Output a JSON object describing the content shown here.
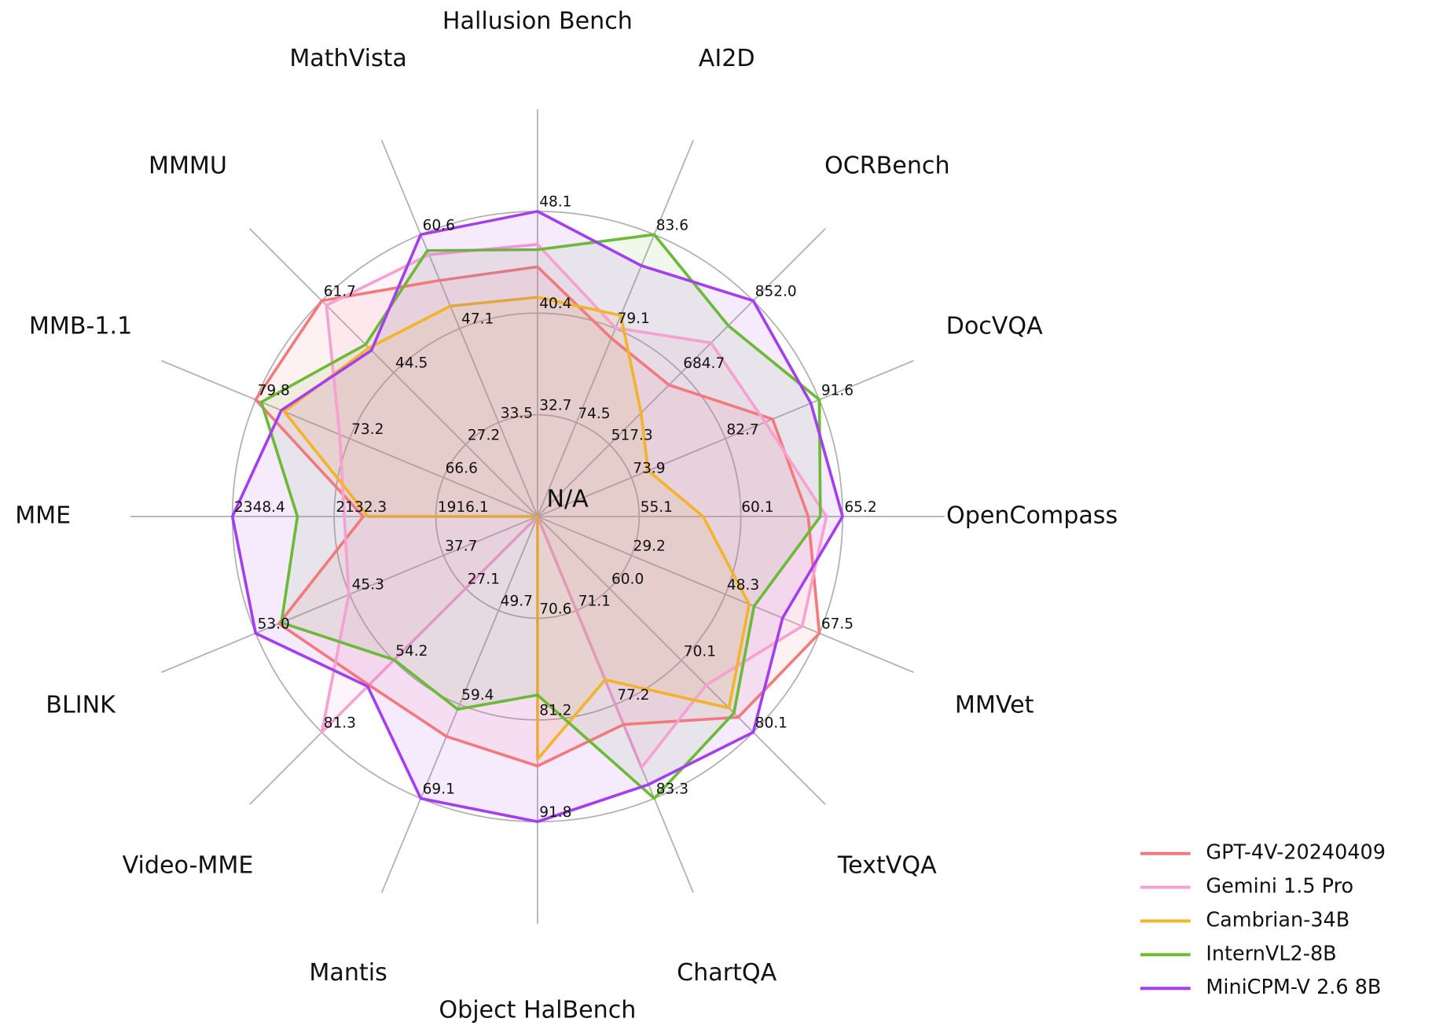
{
  "chart_data": {
    "type": "radar",
    "center_label": "N/A",
    "grid": true,
    "legend": "lower right",
    "axes": [
      {
        "name": "Hallusion Bench",
        "lim": [
          25.0,
          48.1
        ],
        "ticks": [
          32.7,
          40.4,
          48.1
        ]
      },
      {
        "name": "AI2D",
        "lim": [
          70.0,
          83.6
        ],
        "ticks": [
          74.5,
          79.1,
          83.6
        ]
      },
      {
        "name": "OCRBench",
        "lim": [
          350,
          852
        ],
        "ticks": [
          517.3,
          684.7,
          {
            "value": 852,
            "label": "852.0"
          }
        ]
      },
      {
        "name": "DocVQA",
        "lim": [
          65.1,
          91.6
        ],
        "ticks": [
          73.9,
          82.7,
          91.6
        ]
      },
      {
        "name": "OpenCompass",
        "lim": [
          50.1,
          65.2
        ],
        "ticks": [
          55.1,
          60.1,
          65.2
        ]
      },
      {
        "name": "MMVet",
        "lim": [
          10.1,
          67.5
        ],
        "ticks": [
          29.2,
          48.3,
          67.5
        ]
      },
      {
        "name": "TextVQA",
        "lim": [
          49.9,
          80.1
        ],
        "ticks": [
          {
            "value": 60,
            "label": "60.0"
          },
          70.1,
          80.1
        ]
      },
      {
        "name": "ChartQA",
        "lim": [
          65.0,
          83.3
        ],
        "ticks": [
          71.1,
          77.2,
          83.3
        ]
      },
      {
        "name": "Object HalBench",
        "lim": [
          60.0,
          91.8
        ],
        "ticks": [
          70.6,
          81.2,
          91.8
        ]
      },
      {
        "name": "Mantis",
        "lim": [
          40.0,
          69.1
        ],
        "ticks": [
          49.7,
          59.4,
          69.1
        ]
      },
      {
        "name": "Video-MME",
        "lim": [
          0,
          81.3
        ],
        "ticks": [
          27.1,
          54.2,
          81.3
        ]
      },
      {
        "name": "BLINK",
        "lim": [
          30.0,
          53.0
        ],
        "ticks": [
          37.7,
          45.3,
          {
            "value": 53,
            "label": "53.0"
          }
        ]
      },
      {
        "name": "MME",
        "lim": [
          1700,
          2348.4
        ],
        "ticks": [
          1916.1,
          2132.3,
          2348.4
        ]
      },
      {
        "name": "MMB-1.1",
        "lim": [
          60,
          79.8
        ],
        "ticks": [
          66.6,
          73.2,
          79.8
        ]
      },
      {
        "name": "MMMU",
        "lim": [
          10,
          61.7
        ],
        "ticks": [
          27.2,
          44.5,
          61.7
        ]
      },
      {
        "name": "MathVista",
        "lim": [
          20,
          60.6
        ],
        "ticks": [
          33.5,
          47.1,
          60.6
        ]
      }
    ],
    "series": [
      {
        "name": "GPT-4V-20240409",
        "color": "#f27a7d",
        "values": [
          43.9,
          78.6,
          656,
          87.2,
          63.5,
          67.5,
          78.0,
          78.5,
          86.0,
          62.7,
          63.5,
          51.1,
          2070.2,
          79.8,
          61.7,
          54.0
        ]
      },
      {
        "name": "Gemini 1.5 Pro",
        "color": "#f7a1d2",
        "values": [
          45.6,
          79.1,
          754,
          86.5,
          64.4,
          64.0,
          73.5,
          81.3,
          null,
          null,
          81.3,
          45.4,
          2110.6,
          73.9,
          60.6,
          57.7
        ]
      },
      {
        "name": "Cambrian-34B",
        "color": "#f4b42a",
        "values": [
          41.6,
          79.7,
          591,
          75.5,
          58.3,
          53.2,
          76.7,
          75.6,
          85.3,
          null,
          null,
          null,
          2060,
          77.8,
          50.4,
          50.3
        ]
      },
      {
        "name": "InternVL2-8B",
        "color": "#6bbb37",
        "values": [
          45.2,
          83.6,
          794,
          91.6,
          64.1,
          54.2,
          77.4,
          83.3,
          78.6,
          59.9,
          54.0,
          50.9,
          2210.3,
          79.4,
          51.2,
          58.3
        ]
      },
      {
        "name": "MiniCPM-V 2.6 8B",
        "color": "#a43ff0",
        "values": [
          48.1,
          82.1,
          852,
          90.8,
          65.2,
          60.0,
          80.1,
          82.4,
          91.8,
          69.1,
          64.0,
          53.0,
          2348.4,
          78.0,
          49.8,
          60.6
        ]
      }
    ]
  }
}
